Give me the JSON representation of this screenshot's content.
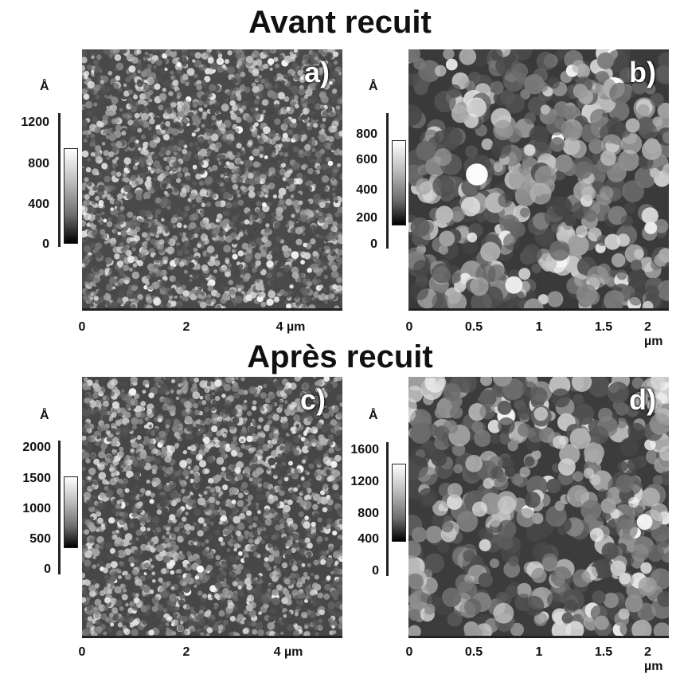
{
  "titles": {
    "top": "Avant recuit",
    "bottom": "Après recuit"
  },
  "panels": [
    {
      "letter": "a)",
      "unit": "Å",
      "scale": [
        "1200",
        "800",
        "400",
        "0"
      ],
      "x_ticks": [
        "0",
        "2",
        "4 µm"
      ],
      "texture": "fine grains"
    },
    {
      "letter": "b)",
      "unit": "Å",
      "scale": [
        "800",
        "600",
        "400",
        "200",
        "0"
      ],
      "x_ticks": [
        "0",
        "0.5",
        "1",
        "1.5",
        "2 µm"
      ],
      "texture": "coarse grains"
    },
    {
      "letter": "c)",
      "unit": "Å",
      "scale": [
        "2000",
        "1500",
        "1000",
        "500",
        "0"
      ],
      "x_ticks": [
        "0",
        "2",
        "4 µm"
      ],
      "texture": "fine grains"
    },
    {
      "letter": "d)",
      "unit": "Å",
      "scale": [
        "1600",
        "1200",
        "800",
        "400",
        "0"
      ],
      "x_ticks": [
        "0",
        "0.5",
        "1",
        "1.5",
        "2 µm"
      ],
      "texture": "coarse grains"
    }
  ]
}
